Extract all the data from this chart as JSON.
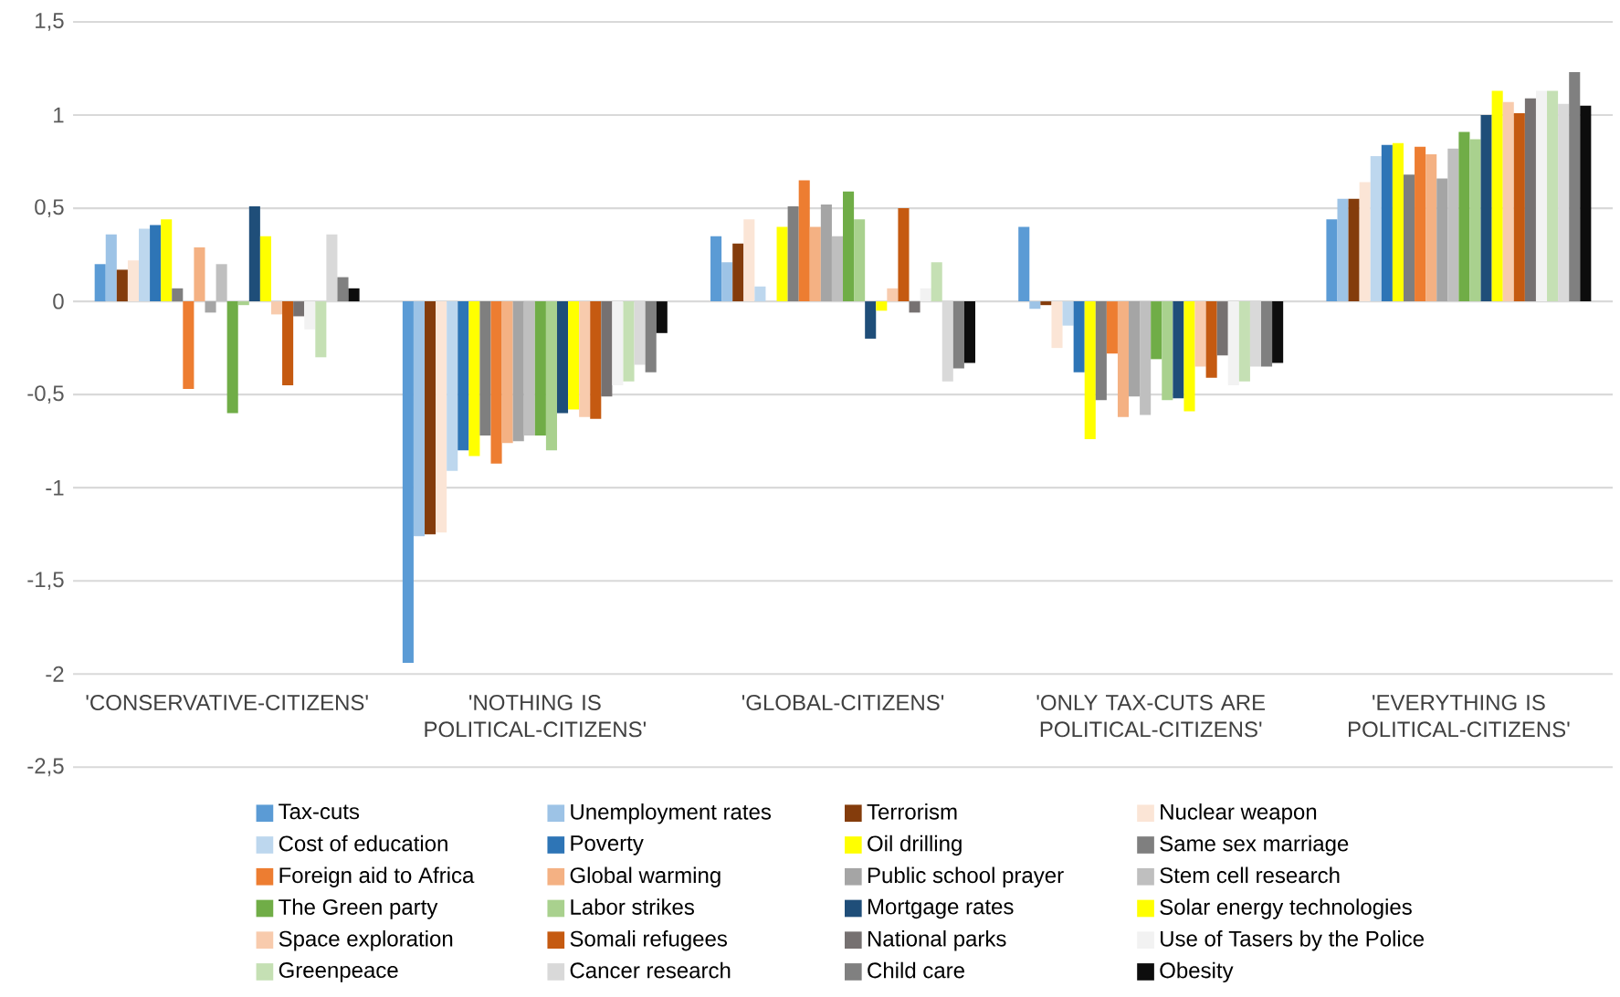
{
  "chart_data": {
    "type": "bar",
    "categories": [
      "'CONSERVATIVE-CITIZENS'",
      "'NOTHING IS POLITICAL-CITIZENS'",
      "'GLOBAL-CITIZENS'",
      "'ONLY TAX-CUTS ARE POLITICAL-CITIZENS'",
      "'EVERYTHING IS POLITICAL-CITIZENS'"
    ],
    "ylim": [
      -2.5,
      1.5
    ],
    "yticks": [
      {
        "value": -2.5,
        "label": "-2,5"
      },
      -2,
      {
        "value": -1.5,
        "label": "-1,5"
      },
      -1,
      {
        "value": -0.5,
        "label": "-0,5"
      },
      0,
      {
        "value": 0.5,
        "label": "0,5"
      },
      1,
      {
        "value": 1.5,
        "label": "1,5"
      }
    ],
    "grid": "y",
    "legend": "bottom",
    "series": [
      {
        "name": "Tax-cuts",
        "color": "#5b9bd5",
        "values": [
          0.2,
          -1.94,
          0.35,
          0.4,
          0.44
        ]
      },
      {
        "name": "Unemployment rates",
        "color": "#9dc3e6",
        "values": [
          0.36,
          -1.26,
          0.21,
          -0.04,
          0.55
        ]
      },
      {
        "name": "Terrorism",
        "color": "#843c0c",
        "values": [
          0.17,
          -1.25,
          0.31,
          -0.02,
          0.55
        ]
      },
      {
        "name": "Nuclear weapon",
        "color": "#fbe5d6",
        "values": [
          0.22,
          -1.24,
          0.44,
          -0.25,
          0.64
        ]
      },
      {
        "name": "Cost of education",
        "color": "#bdd7ee",
        "values": [
          0.39,
          -0.91,
          0.08,
          -0.13,
          0.78
        ]
      },
      {
        "name": "Poverty",
        "color": "#2e75b6",
        "values": [
          0.41,
          -0.8,
          0,
          -0.38,
          0.84
        ]
      },
      {
        "name": "Oil drilling",
        "color": "#ffff00",
        "values": [
          0.44,
          -0.83,
          0.4,
          -0.74,
          0.85
        ]
      },
      {
        "name": "Same sex marriage",
        "color": "#7f7f7f",
        "values": [
          0.07,
          -0.72,
          0.51,
          -0.53,
          0.68
        ]
      },
      {
        "name": "Foreign aid to Africa",
        "color": "#ed7d31",
        "values": [
          -0.47,
          -0.87,
          0.65,
          -0.28,
          0.83
        ]
      },
      {
        "name": "Global warming",
        "color": "#f4b183",
        "values": [
          0.29,
          -0.76,
          0.4,
          -0.62,
          0.79
        ]
      },
      {
        "name": "Public school prayer",
        "color": "#a5a5a5",
        "values": [
          -0.06,
          -0.75,
          0.52,
          -0.51,
          0.66
        ]
      },
      {
        "name": "Stem cell research",
        "color": "#bfbfbf",
        "values": [
          0.2,
          -0.72,
          0.35,
          -0.61,
          0.82
        ]
      },
      {
        "name": "The Green party",
        "color": "#70ad47",
        "values": [
          -0.6,
          -0.72,
          0.59,
          -0.31,
          0.91
        ]
      },
      {
        "name": "Labor strikes",
        "color": "#a9d18e",
        "values": [
          -0.02,
          -0.8,
          0.44,
          -0.53,
          0.87
        ]
      },
      {
        "name": "Mortgage rates",
        "color": "#1f4e79",
        "values": [
          0.51,
          -0.6,
          -0.2,
          -0.52,
          1.0
        ]
      },
      {
        "name": "Solar energy technologies",
        "color": "#ffff00",
        "values": [
          0.35,
          -0.58,
          -0.05,
          -0.59,
          1.13
        ]
      },
      {
        "name": "Space exploration",
        "color": "#f8cbad",
        "values": [
          -0.07,
          -0.62,
          0.07,
          -0.35,
          1.07
        ]
      },
      {
        "name": "Somali refugees",
        "color": "#c55a11",
        "values": [
          -0.45,
          -0.63,
          0.5,
          -0.41,
          1.01
        ]
      },
      {
        "name": "National parks",
        "color": "#767171",
        "values": [
          -0.08,
          -0.51,
          -0.06,
          -0.29,
          1.09
        ]
      },
      {
        "name": "Use of Tasers by the Police",
        "color": "#f2f2f2",
        "values": [
          -0.15,
          -0.45,
          0.07,
          -0.45,
          1.13
        ]
      },
      {
        "name": "Greenpeace",
        "color": "#c5e0b4",
        "values": [
          -0.3,
          -0.43,
          0.21,
          -0.43,
          1.13
        ]
      },
      {
        "name": "Cancer research",
        "color": "#d9d9d9",
        "values": [
          0.36,
          -0.34,
          -0.43,
          -0.35,
          1.06
        ]
      },
      {
        "name": "Child care",
        "color": "#808080",
        "values": [
          0.13,
          -0.38,
          -0.36,
          -0.35,
          1.23
        ]
      },
      {
        "name": "Obesity",
        "color": "#0d0d0d",
        "values": [
          0.07,
          -0.17,
          -0.33,
          -0.33,
          1.05
        ]
      }
    ]
  }
}
